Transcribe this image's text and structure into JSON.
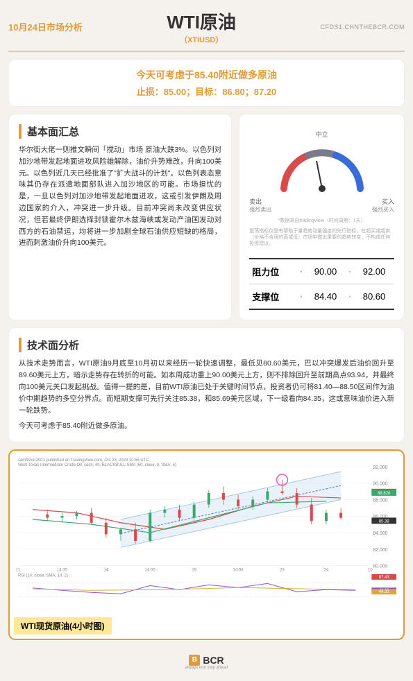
{
  "header": {
    "date_label": "10月24日市场分析",
    "title": "WTI原油",
    "subtitle": "（XTIUSD）",
    "url": "CFDS1.CHNTHEBCR.COM"
  },
  "recommendation": {
    "main": "今天可考虑于85.40附近做多原油",
    "sub": "止损：85.00；目标：86.80；87.20"
  },
  "fundamental": {
    "title": "基本面汇总",
    "text": "华尔街大佬一则推文瞬间「搅动」市场 原油大跌3%。以色列对加沙地带发起地面进攻风险雄解除，油价升势难改，升向100美元。以色列近几天已经批准了\"扩大战斗的计划\"。以色列表态意味其仍存在派遣地面部队进入加沙地区的可能。市场担忧的是，一旦以色列对加沙地带发起地面进攻，这或引发伊朗及周边国家的介入，冲突进一步升级。目前冲突尚未改变供应状况，但若最终伊朗选择封锁霍尔木兹海峡或发动产油国发动对西方的石油禁运，均将进一步加剧全球石油供应短缺的格局，进而刺激油价升向100美元。"
  },
  "gauge": {
    "center_label": "中立",
    "left1": "卖出",
    "right1": "买入",
    "left2": "强烈卖出",
    "right2": "强烈买入",
    "note1": "*数据来自tradingview（时间周期：1天）",
    "note2": "震荡指标仅是有帮助于量趋势动量强度的先行指标，在超买或超卖（价格不合理的高或低）市场中做出重要的趋势转变，不构成任何投资建议。",
    "needle_angle": -10,
    "colors": {
      "sell": "#d94a4a",
      "neutral": "#7a7a8a",
      "buy": "#3a6cd9"
    }
  },
  "levels": {
    "resistance": {
      "label": "阻力位",
      "v1": "90.00",
      "v2": "92.00"
    },
    "support": {
      "label": "支撑位",
      "v1": "84.40",
      "v2": "80.60"
    }
  },
  "technical": {
    "title": "技术面分析",
    "text": "从技术走势而言，WTI原油9月底至10月初以来经历一轮快速调整，最低见80.60美元，巴以冲突爆发后油价回升至89.60美元上方，暗示走势存在转折的可能。如本周成功重上90.00美元上方，则不排除回升至前期高点93.94，并最终向100美元关口发起挑战。值得一提的是，目前WTI原油已处于关键时间节点，投资者仍可将81.40—88.50区间作为油价中期趋势的多空分界点。而短期支撑可先行关注85.38，和85.69美元区域，下一级看向84.35，这或意味油价进入新一轮跌势。",
    "text2": "今天可考虑于85.40附近做多原油。"
  },
  "chart": {
    "title_overlay": "samfisher2001 published on TradingView.com, Oct 23, 2023 10:56 UTC",
    "subtitle": "West Texas Intermediate Crude Oil, cash, 4h, BLACKBULL",
    "sma_label": "SMA (60, close, 0, SMA, 5)",
    "rsi_label": "RSI (14, close, SMA, 14, 2)",
    "tag": "WTI现货原油(4小时图)",
    "y_axis": {
      "min": 80,
      "max": 92,
      "step": 2
    },
    "x_labels": [
      "11",
      "14:00",
      "14",
      "14:00",
      "19",
      "14:00",
      "23",
      "24",
      "10"
    ],
    "price_box": {
      "v1": "88.865",
      "v2": "88.828",
      "v3": "85.38"
    },
    "rsi_box": {
      "v1": "87.43",
      "v2": "48.23",
      "v3": "44.31"
    },
    "colors": {
      "bg": "#ffffff",
      "grid": "#eeeeee",
      "sma_red": "#d94a4a",
      "sma_green": "#3aa86d",
      "channel": "#a8c8e8",
      "candle_up": "#3aa86d",
      "candle_down": "#d94a4a",
      "marker": "#e055d0"
    },
    "candles": [
      {
        "x": 4,
        "o": 86.2,
        "h": 86.8,
        "l": 85.4,
        "c": 85.8
      },
      {
        "x": 6,
        "o": 85.8,
        "h": 86.4,
        "l": 85.2,
        "c": 86.0
      },
      {
        "x": 8,
        "o": 86.0,
        "h": 86.6,
        "l": 85.6,
        "c": 86.4
      },
      {
        "x": 10,
        "o": 86.4,
        "h": 87.0,
        "l": 85.0,
        "c": 85.2
      },
      {
        "x": 12,
        "o": 85.2,
        "h": 85.8,
        "l": 83.4,
        "c": 83.8
      },
      {
        "x": 14,
        "o": 83.8,
        "h": 84.6,
        "l": 83.0,
        "c": 84.4
      },
      {
        "x": 16,
        "o": 84.4,
        "h": 85.2,
        "l": 82.6,
        "c": 83.0
      },
      {
        "x": 18,
        "o": 83.0,
        "h": 86.8,
        "l": 82.8,
        "c": 86.4
      },
      {
        "x": 20,
        "o": 86.4,
        "h": 87.2,
        "l": 85.8,
        "c": 86.8
      },
      {
        "x": 22,
        "o": 86.8,
        "h": 87.4,
        "l": 85.4,
        "c": 85.8
      },
      {
        "x": 24,
        "o": 85.8,
        "h": 87.8,
        "l": 85.4,
        "c": 87.4
      },
      {
        "x": 26,
        "o": 87.4,
        "h": 89.2,
        "l": 87.0,
        "c": 88.8
      },
      {
        "x": 28,
        "o": 88.8,
        "h": 89.6,
        "l": 87.4,
        "c": 88.0
      },
      {
        "x": 30,
        "o": 88.0,
        "h": 88.6,
        "l": 86.8,
        "c": 87.2
      },
      {
        "x": 32,
        "o": 87.2,
        "h": 88.4,
        "l": 86.8,
        "c": 88.0
      },
      {
        "x": 34,
        "o": 88.0,
        "h": 89.4,
        "l": 87.6,
        "c": 89.0
      },
      {
        "x": 36,
        "o": 89.0,
        "h": 90.4,
        "l": 88.6,
        "c": 88.8
      },
      {
        "x": 38,
        "o": 88.8,
        "h": 89.4,
        "l": 87.0,
        "c": 87.4
      },
      {
        "x": 40,
        "o": 87.4,
        "h": 88.2,
        "l": 85.0,
        "c": 85.4
      },
      {
        "x": 42,
        "o": 85.4,
        "h": 86.8,
        "l": 85.0,
        "c": 86.4
      },
      {
        "x": 44,
        "o": 86.4,
        "h": 87.0,
        "l": 85.6,
        "c": 85.8
      }
    ],
    "sma_red_line": [
      [
        2,
        86.8
      ],
      [
        8,
        86.4
      ],
      [
        14,
        85.2
      ],
      [
        20,
        84.4
      ],
      [
        26,
        85.6
      ],
      [
        32,
        87.2
      ],
      [
        38,
        88.4
      ],
      [
        44,
        88.2
      ]
    ],
    "sma_green_line": [
      [
        2,
        85.6
      ],
      [
        10,
        85.0
      ],
      [
        18,
        84.0
      ],
      [
        26,
        85.8
      ],
      [
        34,
        87.6
      ],
      [
        42,
        87.8
      ]
    ],
    "channel_upper": [
      [
        14,
        85.6
      ],
      [
        44,
        91.4
      ]
    ],
    "channel_lower": [
      [
        14,
        82.2
      ],
      [
        44,
        88.0
      ]
    ],
    "channel_mid": [
      [
        14,
        83.9
      ],
      [
        44,
        89.7
      ]
    ],
    "rsi_line": [
      [
        2,
        55
      ],
      [
        6,
        48
      ],
      [
        10,
        42
      ],
      [
        14,
        38
      ],
      [
        18,
        62
      ],
      [
        22,
        50
      ],
      [
        26,
        64
      ],
      [
        30,
        56
      ],
      [
        34,
        68
      ],
      [
        38,
        44
      ],
      [
        42,
        50
      ],
      [
        46,
        48
      ]
    ],
    "rsi_ma": [
      [
        2,
        52
      ],
      [
        10,
        48
      ],
      [
        20,
        50
      ],
      [
        30,
        56
      ],
      [
        40,
        52
      ],
      [
        46,
        50
      ]
    ]
  },
  "footer": {
    "brand": "BCR",
    "tagline": "always one step ahead"
  }
}
